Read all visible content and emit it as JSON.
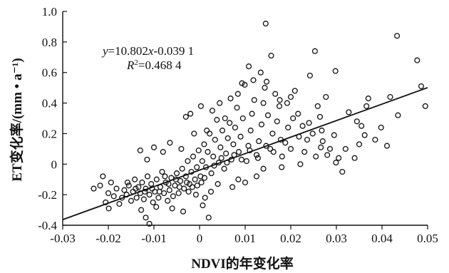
{
  "chart_data": {
    "type": "scatter",
    "xlabel": "NDVI的年变化率",
    "ylabel": "ET变化率/(mm • a⁻¹)",
    "xlim": [
      -0.03,
      0.05
    ],
    "ylim": [
      -0.4,
      1.0
    ],
    "x_ticks": [
      -0.03,
      -0.02,
      -0.01,
      0,
      0.01,
      0.02,
      0.03,
      0.04,
      0.05
    ],
    "y_ticks": [
      -0.4,
      -0.2,
      0,
      0.2,
      0.4,
      0.6,
      0.8,
      1.0
    ],
    "x_tick_labels": [
      "-0.03",
      "-0.02",
      "-0.01",
      "0",
      "0.01",
      "0.02",
      "0.03",
      "0.04",
      "0.05"
    ],
    "y_tick_labels": [
      "-0.4",
      "-0.2",
      "0",
      "0.2",
      "0.4",
      "0.6",
      "0.8",
      "1.0"
    ],
    "grid": false,
    "fit": {
      "slope": 10.802,
      "intercept": -0.0391,
      "x_range": [
        -0.03,
        0.05
      ]
    },
    "equation_line1": {
      "y": "y",
      "eq": "=10.802",
      "x": "x",
      "rest": "-0.039 1"
    },
    "equation_line2": {
      "R": "R",
      "sup": "2",
      "rest": "=0.468 4"
    },
    "points": [
      [
        0.0145,
        0.92
      ],
      [
        0.0433,
        0.84
      ],
      [
        0.0253,
        0.74
      ],
      [
        0.0477,
        0.68
      ],
      [
        0.0157,
        0.71
      ],
      [
        0.0108,
        0.64
      ],
      [
        0.0298,
        0.61
      ],
      [
        0.0242,
        0.58
      ],
      [
        0.0134,
        0.6
      ],
      [
        0.0486,
        0.51
      ],
      [
        0.0495,
        0.38
      ],
      [
        0.037,
        0.43
      ],
      [
        0.0418,
        0.44
      ],
      [
        0.0435,
        0.32
      ],
      [
        0.0411,
        0.12
      ],
      [
        0.0398,
        0.24
      ],
      [
        0.0366,
        0.38
      ],
      [
        0.0327,
        0.34
      ],
      [
        0.0295,
        0.19
      ],
      [
        0.0305,
        0.04
      ],
      [
        0.0299,
        0.01
      ],
      [
        0.0313,
        -0.05
      ],
      [
        0.0345,
        0.28
      ],
      [
        0.035,
        0.13
      ],
      [
        0.0355,
        0.25
      ],
      [
        0.0259,
        0.38
      ],
      [
        0.0264,
        0.31
      ],
      [
        0.0277,
        0.44
      ],
      [
        0.0268,
        0.22
      ],
      [
        0.028,
        0.06
      ],
      [
        0.0236,
        0.16
      ],
      [
        0.023,
        0.08
      ],
      [
        0.0221,
        0.0
      ],
      [
        0.0216,
        0.33
      ],
      [
        0.0209,
        0.48
      ],
      [
        0.02,
        0.44
      ],
      [
        0.0194,
        0.24
      ],
      [
        0.0188,
        0.14
      ],
      [
        0.0181,
        0.05
      ],
      [
        0.0175,
        0.38
      ],
      [
        0.017,
        0.28
      ],
      [
        0.0166,
        0.46
      ],
      [
        0.016,
        0.2
      ],
      [
        0.0155,
        0.1
      ],
      [
        0.015,
        0.32
      ],
      [
        0.0143,
        0.5
      ],
      [
        0.014,
        0.4
      ],
      [
        0.0136,
        0.26
      ],
      [
        0.013,
        0.15
      ],
      [
        0.0125,
        0.06
      ],
      [
        0.012,
        0.42
      ],
      [
        0.0115,
        0.33
      ],
      [
        0.0112,
        0.22
      ],
      [
        0.0107,
        0.12
      ],
      [
        0.0103,
        0.02
      ],
      [
        0.0099,
        0.52
      ],
      [
        0.0095,
        0.3
      ],
      [
        0.009,
        0.18
      ],
      [
        0.0086,
        0.08
      ],
      [
        0.0082,
        0.37
      ],
      [
        0.0078,
        0.24
      ],
      [
        0.0074,
        0.13
      ],
      [
        0.007,
        0.03
      ],
      [
        0.0066,
        0.27
      ],
      [
        0.0062,
        0.17
      ],
      [
        0.0058,
        0.07
      ],
      [
        0.0054,
        -0.03
      ],
      [
        0.005,
        0.22
      ],
      [
        0.0046,
        0.11
      ],
      [
        0.0042,
        0.01
      ],
      [
        0.0038,
        0.29
      ],
      [
        0.0034,
        0.16
      ],
      [
        0.003,
        0.05
      ],
      [
        0.0026,
        -0.06
      ],
      [
        0.0022,
        0.2
      ],
      [
        0.0018,
        0.08
      ],
      [
        0.0014,
        -0.02
      ],
      [
        0.001,
        0.13
      ],
      [
        0.0006,
        0.02
      ],
      [
        0.0002,
        -0.08
      ],
      [
        -0.0002,
        0.09
      ],
      [
        -0.0006,
        -0.02
      ],
      [
        -0.001,
        -0.1
      ],
      [
        -0.0014,
        0.05
      ],
      [
        -0.0018,
        -0.05
      ],
      [
        -0.0022,
        -0.13
      ],
      [
        -0.0026,
        0.02
      ],
      [
        -0.003,
        -0.08
      ],
      [
        -0.0034,
        -0.16
      ],
      [
        -0.0038,
        -0.03
      ],
      [
        -0.0042,
        -0.11
      ],
      [
        -0.0046,
        -0.19
      ],
      [
        -0.005,
        -0.06
      ],
      [
        -0.0054,
        -0.14
      ],
      [
        -0.0058,
        -0.21
      ],
      [
        -0.0062,
        -0.09
      ],
      [
        -0.0066,
        -0.17
      ],
      [
        -0.007,
        -0.24
      ],
      [
        -0.0074,
        -0.12
      ],
      [
        -0.0078,
        -0.19
      ],
      [
        -0.0082,
        -0.05
      ],
      [
        -0.0086,
        -0.15
      ],
      [
        -0.009,
        -0.22
      ],
      [
        -0.0094,
        -0.1
      ],
      [
        -0.0098,
        -0.18
      ],
      [
        -0.0102,
        -0.25
      ],
      [
        -0.0106,
        -0.13
      ],
      [
        -0.011,
        -0.2
      ],
      [
        -0.0114,
        -0.08
      ],
      [
        -0.0118,
        -0.16
      ],
      [
        -0.0122,
        -0.23
      ],
      [
        -0.0126,
        -0.12
      ],
      [
        -0.013,
        -0.19
      ],
      [
        -0.0134,
        -0.15
      ],
      [
        -0.0138,
        -0.22
      ],
      [
        -0.0142,
        -0.1
      ],
      [
        -0.0146,
        -0.18
      ],
      [
        -0.015,
        -0.24
      ],
      [
        -0.0155,
        -0.14
      ],
      [
        -0.016,
        -0.2
      ],
      [
        -0.0165,
        -0.17
      ],
      [
        -0.017,
        -0.22
      ],
      [
        -0.0176,
        -0.26
      ],
      [
        -0.0182,
        -0.16
      ],
      [
        -0.0188,
        -0.21
      ],
      [
        -0.0194,
        -0.12
      ],
      [
        -0.02,
        -0.19
      ],
      [
        -0.0206,
        -0.25
      ],
      [
        -0.0212,
        -0.08
      ],
      [
        -0.0218,
        -0.14
      ],
      [
        -0.0232,
        -0.16
      ],
      [
        -0.0199,
        -0.29
      ],
      [
        -0.0118,
        -0.35
      ],
      [
        -0.0128,
        -0.3
      ],
      [
        -0.0095,
        -0.28
      ],
      [
        -0.006,
        -0.29
      ],
      [
        -0.0036,
        -0.31
      ],
      [
        0.002,
        -0.35
      ],
      [
        0.0007,
        -0.27
      ],
      [
        -0.011,
        -0.39
      ],
      [
        -0.013,
        0.09
      ],
      [
        -0.0115,
        0.03
      ],
      [
        -0.01,
        0.11
      ],
      [
        -0.008,
        0.08
      ],
      [
        -0.0065,
        0.14
      ],
      [
        -0.004,
        0.1
      ],
      [
        -0.003,
        0.31
      ],
      [
        -0.002,
        0.33
      ],
      [
        -0.0012,
        0.2
      ],
      [
        0.0003,
        0.38
      ],
      [
        0.0016,
        0.22
      ],
      [
        0.0028,
        0.35
      ],
      [
        0.0044,
        0.4
      ],
      [
        0.0056,
        0.3
      ],
      [
        0.0068,
        0.43
      ],
      [
        0.0084,
        0.46
      ],
      [
        0.0093,
        0.53
      ],
      [
        0.0118,
        0.55
      ],
      [
        0.0147,
        0.54
      ],
      [
        0.0176,
        0.42
      ],
      [
        0.0192,
        0.4
      ],
      [
        0.0205,
        0.3
      ],
      [
        0.0226,
        0.25
      ],
      [
        0.0248,
        0.2
      ],
      [
        0.0266,
        0.11
      ],
      [
        0.0286,
        0.1
      ],
      [
        0.032,
        0.1
      ],
      [
        0.034,
        0.04
      ],
      [
        0.0362,
        0.19
      ],
      [
        0.0385,
        0.16
      ],
      [
        0.014,
        -0.03
      ],
      [
        0.0125,
        -0.08
      ],
      [
        0.01,
        -0.12
      ],
      [
        0.0085,
        -0.1
      ],
      [
        0.0072,
        -0.15
      ],
      [
        0.004,
        -0.13
      ],
      [
        0.0025,
        -0.18
      ],
      [
        0.0012,
        -0.22
      ],
      [
        -0.0008,
        -0.2
      ],
      [
        0.018,
        -0.02
      ],
      [
        0.02,
        0.1
      ],
      [
        0.0218,
        0.18
      ],
      [
        0.024,
        0.27
      ],
      [
        0.0255,
        0.05
      ],
      [
        0.027,
        0.15
      ],
      [
        -0.0005,
        -0.14
      ],
      [
        0.0004,
        -0.12
      ],
      [
        -0.0016,
        -0.15
      ],
      [
        0.0011,
        -0.09
      ],
      [
        -0.0024,
        -0.18
      ],
      [
        -0.0028,
        -0.12
      ],
      [
        -0.0044,
        -0.15
      ],
      [
        -0.0052,
        -0.1
      ],
      [
        -0.0068,
        -0.13
      ],
      [
        -0.0076,
        -0.08
      ],
      [
        -0.0088,
        -0.18
      ],
      [
        -0.0104,
        -0.16
      ],
      [
        -0.012,
        -0.18
      ],
      [
        -0.014,
        -0.16
      ],
      [
        -0.0158,
        -0.12
      ],
      [
        0.0032,
        -0.01
      ],
      [
        0.0048,
        0.04
      ],
      [
        0.006,
        0.01
      ],
      [
        0.0076,
        0.06
      ],
      [
        0.0092,
        0.03
      ],
      [
        0.011,
        0.09
      ],
      [
        0.0128,
        0.04
      ],
      [
        0.0146,
        0.12
      ],
      [
        0.0162,
        0.08
      ],
      [
        0.0178,
        0.16
      ]
    ]
  }
}
